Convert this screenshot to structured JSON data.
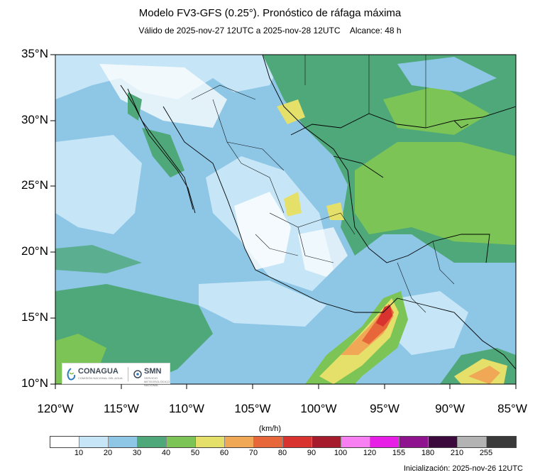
{
  "title": "Modelo FV3-GFS (0.25°). Pronóstico de ráfaga máxima",
  "subtitle": {
    "validity": "Válido de 2025-nov-27 12UTC a 2025-nov-28 12UTC",
    "range": "Alcance: 48 h"
  },
  "axes": {
    "y_labels": [
      "35°N",
      "30°N",
      "25°N",
      "20°N",
      "15°N",
      "10°N"
    ],
    "x_labels": [
      "120°W",
      "115°W",
      "110°W",
      "105°W",
      "100°W",
      "95°W",
      "90°W",
      "85°W"
    ]
  },
  "logos": {
    "conagua": "CONAGUA",
    "conagua_sub": "COMISIÓN NACIONAL DEL AGUA",
    "smn": "SMN",
    "smn_sub": "SERVICIO METEOROLÓGICO NACIONAL"
  },
  "colorbar": {
    "units": "(km/h)",
    "labels": [
      "10",
      "20",
      "30",
      "40",
      "50",
      "60",
      "70",
      "80",
      "90",
      "100",
      "120",
      "155",
      "180",
      "210",
      "255"
    ],
    "colors": [
      "#ffffff",
      "#c6e6f7",
      "#8ec6e6",
      "#4fa879",
      "#7dc457",
      "#e4e06a",
      "#f1a856",
      "#e8673a",
      "#d8332f",
      "#a71c2c",
      "#f77ff2",
      "#e71ee6",
      "#8f138f",
      "#3d0a3d",
      "#b3b3b3",
      "#3a3a3a"
    ]
  },
  "initialization": "Inicialización: 2025-nov-26 12UTC"
}
